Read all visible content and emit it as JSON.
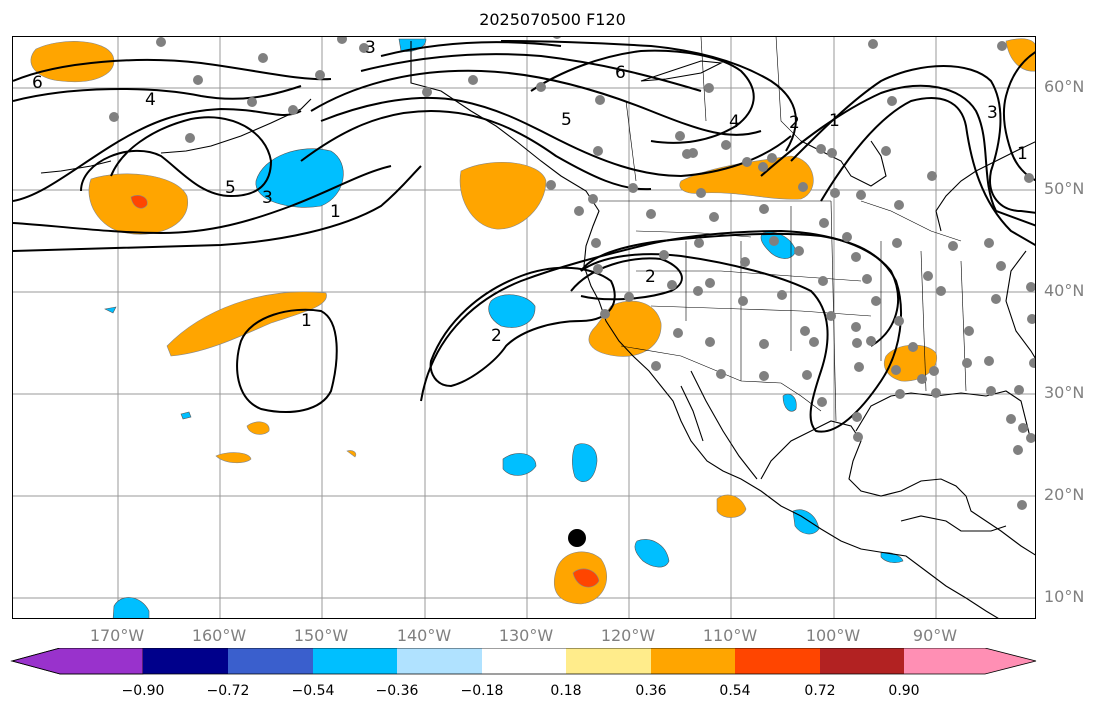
{
  "title": "2025070500 F120",
  "lat_labels": [
    "60°N",
    "50°N",
    "40°N",
    "30°N",
    "20°N",
    "10°N"
  ],
  "lon_labels": [
    "170°W",
    "160°W",
    "150°W",
    "140°W",
    "130°W",
    "120°W",
    "110°W",
    "100°W",
    "90°W"
  ],
  "contour_labels": [
    "6",
    "4",
    "3",
    "5",
    "3",
    "1",
    "6",
    "5",
    "4",
    "2",
    "1",
    "3",
    "2",
    "1",
    "2",
    "1"
  ],
  "colorbar": {
    "ticks": [
      "−0.90",
      "−0.72",
      "−0.54",
      "−0.36",
      "−0.18",
      "0.18",
      "0.36",
      "0.54",
      "0.72",
      "0.90"
    ],
    "colors": [
      "#9932cc",
      "#00008b",
      "#3a5fcd",
      "#00bfff",
      "#b0e2ff",
      "#ffffff",
      "#ffec8b",
      "#ffa500",
      "#ff4500",
      "#b22222",
      "#ff8fb4"
    ]
  },
  "colors": {
    "land_line": "#000000",
    "grid": "#999999",
    "station_dot": "#808080",
    "positive_fill": "#ffa500",
    "strong_positive_fill": "#ff4500",
    "negative_fill": "#00bfff"
  }
}
